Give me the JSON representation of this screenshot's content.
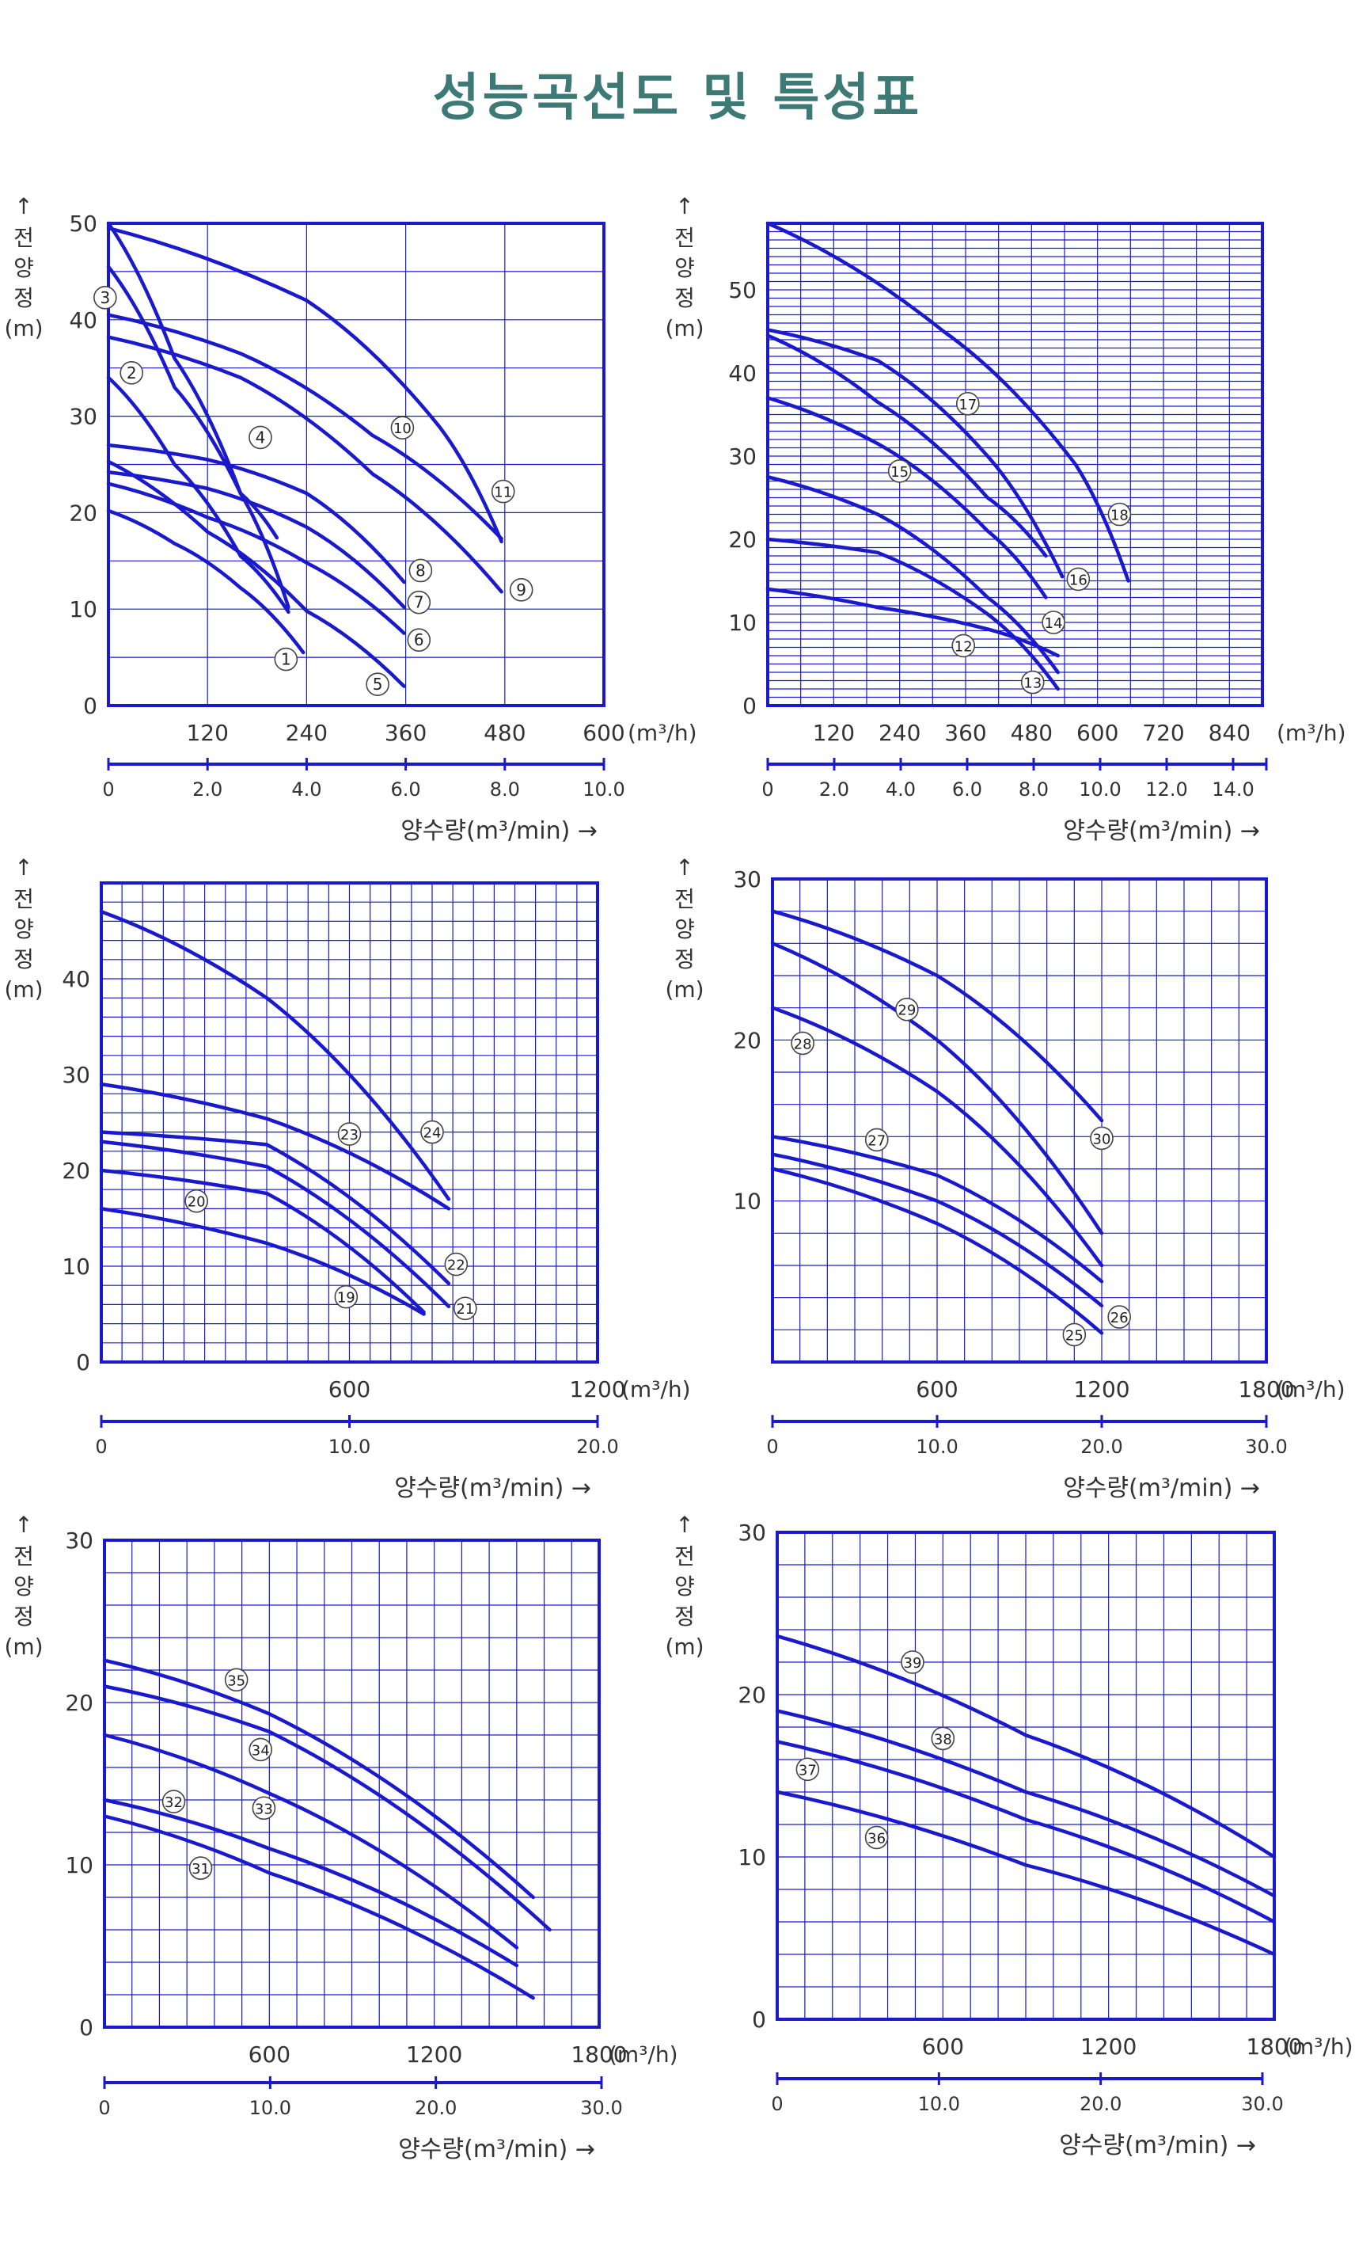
{
  "page": {
    "title": "성능곡선도 및 특성표"
  },
  "colors": {
    "title": "#3d7a76",
    "ink": "#1a1acc",
    "grid": "#1a1acc",
    "text": "#333333"
  },
  "chart_data": [
    {
      "type": "line",
      "ylabel_lines": [
        "전",
        "양",
        "정",
        "(m)"
      ],
      "y_arrow": "↑",
      "x_unit": "(m³/h)",
      "x_ticks": [
        120,
        240,
        360,
        480,
        600
      ],
      "y_ticks": [
        0,
        10,
        20,
        30,
        40,
        50
      ],
      "xlim": [
        0,
        600
      ],
      "ylim": [
        0,
        50
      ],
      "secondary_axis": {
        "ticks": [
          "0",
          "2.0",
          "4.0",
          "6.0",
          "8.0",
          "10.0"
        ],
        "values": [
          0,
          2,
          4,
          6,
          8,
          10
        ],
        "range": [
          0,
          10
        ],
        "label": "양수량(m³/min) →"
      },
      "series": [
        {
          "name": "1",
          "points": [
            [
              0,
              20.2
            ],
            [
              80,
              16.8
            ],
            [
              160,
              12.2
            ],
            [
              236,
              5.5
            ]
          ],
          "label_at": [
            215,
            4.8
          ]
        },
        {
          "name": "2",
          "points": [
            [
              0,
              34
            ],
            [
              80,
              25
            ],
            [
              160,
              15.5
            ],
            [
              218,
              9.7
            ]
          ],
          "label_at": [
            28,
            34.5
          ]
        },
        {
          "name": "3",
          "points": [
            [
              0,
              50
            ],
            [
              80,
              36
            ],
            [
              160,
              22
            ],
            [
              218,
              10.2
            ]
          ],
          "label_at": [
            -4,
            42.3
          ]
        },
        {
          "name": "4",
          "points": [
            [
              0,
              45.5
            ],
            [
              80,
              33
            ],
            [
              160,
              22
            ],
            [
              204,
              17.4
            ]
          ],
          "label_at": [
            184,
            27.8
          ]
        },
        {
          "name": "5",
          "points": [
            [
              0,
              25.3
            ],
            [
              120,
              18
            ],
            [
              240,
              9.8
            ],
            [
              358,
              2
            ]
          ],
          "label_at": [
            326,
            2.2
          ]
        },
        {
          "name": "6",
          "points": [
            [
              0,
              23
            ],
            [
              120,
              19.5
            ],
            [
              240,
              14.8
            ],
            [
              358,
              7.5
            ]
          ],
          "label_at": [
            376,
            6.8
          ]
        },
        {
          "name": "7",
          "points": [
            [
              0,
              24.2
            ],
            [
              120,
              22.5
            ],
            [
              240,
              18.5
            ],
            [
              358,
              10.2
            ]
          ],
          "label_at": [
            376,
            10.7
          ]
        },
        {
          "name": "8",
          "points": [
            [
              0,
              27
            ],
            [
              120,
              25.5
            ],
            [
              240,
              22
            ],
            [
              358,
              12.8
            ]
          ],
          "label_at": [
            378,
            14
          ]
        },
        {
          "name": "9",
          "points": [
            [
              0,
              38.2
            ],
            [
              160,
              34
            ],
            [
              320,
              24
            ],
            [
              476,
              11.8
            ]
          ],
          "label_at": [
            500,
            12
          ]
        },
        {
          "name": "10",
          "points": [
            [
              0,
              40.5
            ],
            [
              160,
              36.5
            ],
            [
              320,
              28
            ],
            [
              476,
              17.3
            ]
          ],
          "label_at": [
            356,
            28.8
          ]
        },
        {
          "name": "11",
          "points": [
            [
              0,
              49.5
            ],
            [
              240,
              42
            ],
            [
              400,
              29
            ],
            [
              476,
              17
            ]
          ],
          "label_at": [
            478,
            22.2
          ]
        }
      ]
    },
    {
      "type": "line",
      "ylabel_lines": [
        "전",
        "양",
        "정",
        "(m)"
      ],
      "y_arrow": "↑",
      "x_unit": "(m³/h)",
      "x_ticks": [
        120,
        240,
        360,
        480,
        600,
        720,
        840
      ],
      "y_ticks": [
        0,
        10,
        20,
        30,
        40,
        50
      ],
      "xlim": [
        0,
        900
      ],
      "ylim": [
        0,
        58
      ],
      "secondary_axis": {
        "ticks": [
          "0",
          "2.0",
          "4.0",
          "6.0",
          "8.0",
          "10.0",
          "12.0",
          "14.0"
        ],
        "values": [
          0,
          2,
          4,
          6,
          8,
          10,
          12,
          14
        ],
        "range": [
          0,
          15
        ],
        "label": "양수량(m³/min) →"
      },
      "series": [
        {
          "name": "12",
          "points": [
            [
              0,
              14
            ],
            [
              200,
              11.8
            ],
            [
              400,
              9.2
            ],
            [
              528,
              6
            ]
          ],
          "label_at": [
            356,
            7.2
          ]
        },
        {
          "name": "13",
          "points": [
            [
              0,
              20
            ],
            [
              200,
              18.4
            ],
            [
              400,
              11
            ],
            [
              528,
              2
            ]
          ],
          "label_at": [
            482,
            2.8
          ]
        },
        {
          "name": "14",
          "points": [
            [
              0,
              27.5
            ],
            [
              200,
              23
            ],
            [
              400,
              13
            ],
            [
              528,
              4
            ]
          ],
          "label_at": [
            520,
            10
          ]
        },
        {
          "name": "15",
          "points": [
            [
              0,
              37
            ],
            [
              200,
              31.5
            ],
            [
              400,
              21
            ],
            [
              506,
              13
            ]
          ],
          "label_at": [
            240,
            28.2
          ]
        },
        {
          "name": "16",
          "points": [
            [
              0,
              44.5
            ],
            [
              200,
              36.5
            ],
            [
              400,
              25
            ],
            [
              506,
              18
            ]
          ],
          "label_at": [
            565,
            15.2
          ]
        },
        {
          "name": "17",
          "points": [
            [
              0,
              45.2
            ],
            [
              200,
              41.5
            ],
            [
              400,
              30
            ],
            [
              536,
              15.5
            ]
          ],
          "label_at": [
            364,
            36.3
          ]
        },
        {
          "name": "18",
          "points": [
            [
              0,
              58
            ],
            [
              320,
              45
            ],
            [
              560,
              29
            ],
            [
              656,
              15
            ]
          ],
          "label_at": [
            640,
            23
          ]
        }
      ]
    },
    {
      "type": "line",
      "ylabel_lines": [
        "전",
        "양",
        "정",
        "(m)"
      ],
      "y_arrow": "↑",
      "x_unit": "(m³/h)",
      "x_ticks": [
        600,
        1200
      ],
      "y_ticks": [
        0,
        10,
        20,
        30,
        40
      ],
      "xlim": [
        0,
        1200
      ],
      "ylim": [
        0,
        50
      ],
      "secondary_axis": {
        "ticks": [
          "0",
          "10.0",
          "20.0"
        ],
        "values": [
          0,
          10,
          20
        ],
        "range": [
          0,
          20
        ],
        "label": "양수량(m³/min) →"
      },
      "series": [
        {
          "name": "19",
          "points": [
            [
              0,
              16
            ],
            [
              400,
              12.4
            ],
            [
              780,
              5
            ]
          ],
          "label_at": [
            592,
            6.8
          ]
        },
        {
          "name": "20",
          "points": [
            [
              0,
              20
            ],
            [
              400,
              17.6
            ],
            [
              780,
              5.2
            ]
          ],
          "label_at": [
            230,
            16.8
          ]
        },
        {
          "name": "21",
          "points": [
            [
              0,
              23
            ],
            [
              400,
              20.4
            ],
            [
              840,
              5.8
            ]
          ],
          "label_at": [
            880,
            5.6
          ]
        },
        {
          "name": "22",
          "points": [
            [
              0,
              24
            ],
            [
              400,
              22.7
            ],
            [
              840,
              8.2
            ]
          ],
          "label_at": [
            858,
            10.2
          ]
        },
        {
          "name": "23",
          "points": [
            [
              0,
              29
            ],
            [
              400,
              25.4
            ],
            [
              840,
              16
            ]
          ],
          "label_at": [
            600,
            23.8
          ]
        },
        {
          "name": "24",
          "points": [
            [
              0,
              47
            ],
            [
              400,
              38
            ],
            [
              840,
              17
            ]
          ],
          "label_at": [
            800,
            24
          ]
        }
      ]
    },
    {
      "type": "line",
      "ylabel_lines": [
        "전",
        "양",
        "정",
        "(m)"
      ],
      "y_arrow": "↑",
      "x_unit": "(m³/h)",
      "x_ticks": [
        600,
        1200,
        1800
      ],
      "y_ticks": [
        10,
        20,
        30
      ],
      "xlim": [
        0,
        1800
      ],
      "ylim": [
        0,
        30
      ],
      "secondary_axis": {
        "ticks": [
          "0",
          "10.0",
          "20.0",
          "30.0"
        ],
        "values": [
          0,
          10,
          20,
          30
        ],
        "range": [
          0,
          30
        ],
        "label": "양수량(m³/min) →"
      },
      "series": [
        {
          "name": "25",
          "points": [
            [
              0,
              12
            ],
            [
              600,
              8.6
            ],
            [
              1200,
              1.8
            ]
          ],
          "label_at": [
            1100,
            1.7
          ]
        },
        {
          "name": "26",
          "points": [
            [
              0,
              12.9
            ],
            [
              600,
              10
            ],
            [
              1200,
              3.5
            ]
          ],
          "label_at": [
            1264,
            2.8
          ]
        },
        {
          "name": "27",
          "points": [
            [
              0,
              14
            ],
            [
              600,
              11.6
            ],
            [
              1200,
              5
            ]
          ],
          "label_at": [
            380,
            13.8
          ]
        },
        {
          "name": "28",
          "points": [
            [
              0,
              22
            ],
            [
              600,
              16.8
            ],
            [
              1200,
              6
            ]
          ],
          "label_at": [
            110,
            19.8
          ]
        },
        {
          "name": "29",
          "points": [
            [
              0,
              26
            ],
            [
              600,
              20
            ],
            [
              1200,
              8
            ]
          ],
          "label_at": [
            490,
            21.9
          ]
        },
        {
          "name": "30",
          "points": [
            [
              0,
              28
            ],
            [
              600,
              24
            ],
            [
              1200,
              15
            ]
          ],
          "label_at": [
            1200,
            13.9
          ]
        }
      ]
    },
    {
      "type": "line",
      "ylabel_lines": [
        "전",
        "양",
        "정",
        "(m)"
      ],
      "y_arrow": "↑",
      "x_unit": "(m³/h)",
      "x_ticks": [
        600,
        1200,
        1800
      ],
      "y_ticks": [
        0,
        10,
        20,
        30
      ],
      "xlim": [
        0,
        1800
      ],
      "ylim": [
        0,
        30
      ],
      "secondary_axis": {
        "ticks": [
          "0",
          "10.0",
          "20.0",
          "30.0"
        ],
        "values": [
          0,
          10,
          20,
          30
        ],
        "range": [
          0,
          30
        ],
        "label": "양수량(m³/min) →"
      },
      "series": [
        {
          "name": "31",
          "points": [
            [
              0,
              13
            ],
            [
              600,
              9.5
            ],
            [
              1560,
              1.8
            ]
          ],
          "label_at": [
            350,
            9.8
          ]
        },
        {
          "name": "32",
          "points": [
            [
              0,
              14
            ],
            [
              600,
              11
            ],
            [
              1500,
              3.8
            ]
          ],
          "label_at": [
            252,
            13.9
          ]
        },
        {
          "name": "33",
          "points": [
            [
              0,
              18
            ],
            [
              600,
              14.4
            ],
            [
              1500,
              4.9
            ]
          ],
          "label_at": [
            580,
            13.5
          ]
        },
        {
          "name": "34",
          "points": [
            [
              0,
              21
            ],
            [
              600,
              18.2
            ],
            [
              1620,
              6
            ]
          ],
          "label_at": [
            568,
            17.1
          ]
        },
        {
          "name": "35",
          "points": [
            [
              0,
              22.6
            ],
            [
              600,
              19.3
            ],
            [
              1560,
              8
            ]
          ],
          "label_at": [
            480,
            21.4
          ]
        }
      ]
    },
    {
      "type": "line",
      "ylabel_lines": [
        "전",
        "양",
        "정",
        "(m)"
      ],
      "y_arrow": "↑",
      "x_unit": "(m³/h)",
      "x_ticks": [
        600,
        1200,
        1800
      ],
      "y_ticks": [
        0,
        10,
        20,
        30
      ],
      "xlim": [
        0,
        1800
      ],
      "ylim": [
        0,
        30
      ],
      "secondary_axis": {
        "ticks": [
          "0",
          "10.0",
          "20.0",
          "30.0"
        ],
        "values": [
          0,
          10,
          20,
          30
        ],
        "range": [
          0,
          30
        ],
        "label": "양수량(m³/min) →"
      },
      "series": [
        {
          "name": "36",
          "points": [
            [
              0,
              14
            ],
            [
              900,
              9.5
            ],
            [
              1800,
              4
            ]
          ],
          "label_at": [
            360,
            11.2
          ]
        },
        {
          "name": "37",
          "points": [
            [
              0,
              17.1
            ],
            [
              900,
              12.3
            ],
            [
              1800,
              6
            ]
          ],
          "label_at": [
            110,
            15.4
          ]
        },
        {
          "name": "38",
          "points": [
            [
              0,
              19
            ],
            [
              900,
              14
            ],
            [
              1800,
              7.6
            ]
          ],
          "label_at": [
            600,
            17.3
          ]
        },
        {
          "name": "39",
          "points": [
            [
              0,
              23.6
            ],
            [
              900,
              17.5
            ],
            [
              1800,
              10
            ]
          ],
          "label_at": [
            490,
            22
          ]
        }
      ]
    }
  ]
}
